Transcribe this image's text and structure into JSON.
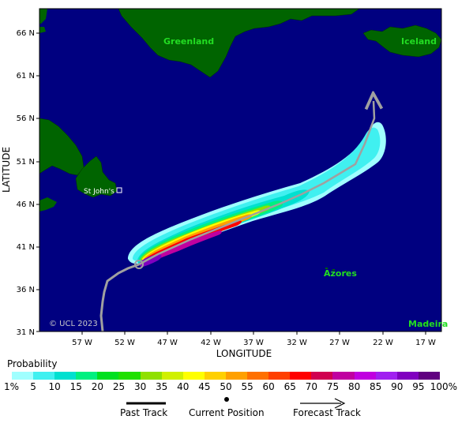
{
  "map": {
    "x_axis_title": "LONGITUDE",
    "y_axis_title": "LATITUDE",
    "lat_ticks": [
      "66 N",
      "61 N",
      "56 N",
      "51 N",
      "46 N",
      "41 N",
      "36 N",
      "31 N"
    ],
    "lon_ticks": [
      "57 W",
      "52 W",
      "47 W",
      "42 W",
      "37 W",
      "32 W",
      "27 W",
      "22 W",
      "17 W"
    ],
    "place_labels": {
      "greenland": "Greenland",
      "iceland": "Iceland",
      "azores": "Azores",
      "madeira": "Madeira",
      "st_johns": "St John's"
    },
    "copyright": "© UCL 2023",
    "colors": {
      "ocean": "#000080",
      "land": "#006400",
      "track": "#a0a0a0"
    }
  },
  "legend": {
    "title": "Probability",
    "labels": [
      "1%",
      "5",
      "10",
      "15",
      "20",
      "25",
      "30",
      "35",
      "40",
      "45",
      "50",
      "55",
      "60",
      "65",
      "70",
      "75",
      "80",
      "85",
      "90",
      "95",
      "100%"
    ],
    "colors": [
      "#a0ffff",
      "#40f0f0",
      "#00e0d0",
      "#00f080",
      "#00e020",
      "#20e000",
      "#90e000",
      "#d0f000",
      "#ffff00",
      "#ffd000",
      "#ffa000",
      "#ff7000",
      "#ff4000",
      "#ff0000",
      "#d00050",
      "#c000a0",
      "#c000e0",
      "#a020f0",
      "#8000c0",
      "#600080"
    ]
  },
  "key": {
    "past_track": "Past Track",
    "current_position": "Current Position",
    "forecast_track": "Forecast Track"
  }
}
